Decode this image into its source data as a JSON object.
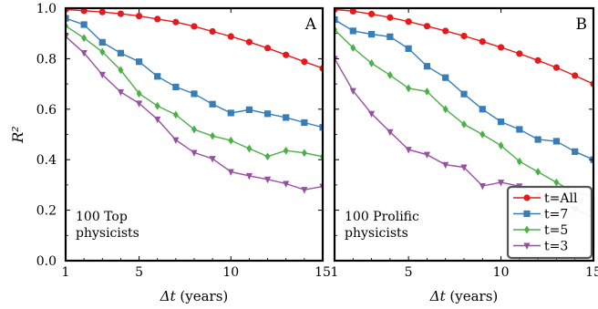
{
  "colors": {
    "t_all": "#e41a1c",
    "t_7": "#377eb8",
    "t_5": "#4daf4a",
    "t_3": "#984ea3"
  },
  "chart_data": [
    {
      "type": "line",
      "panel_label": "A",
      "annotation": [
        "100 Top",
        "physicists"
      ],
      "xlabel": "Δt (years)",
      "ylabel": "R²",
      "xlim": [
        1,
        15
      ],
      "ylim": [
        0.0,
        1.0
      ],
      "xticks": [
        1,
        5,
        10,
        15
      ],
      "yticks": [
        0.0,
        0.2,
        0.4,
        0.6,
        0.8,
        1.0
      ],
      "grid": false,
      "x": [
        1,
        2,
        3,
        4,
        5,
        6,
        7,
        8,
        9,
        10,
        11,
        12,
        13,
        14,
        15
      ],
      "series": [
        {
          "name": "t=All",
          "marker": "circle",
          "color": "#e41a1c",
          "values": [
            0.995,
            0.99,
            0.985,
            0.978,
            0.969,
            0.957,
            0.945,
            0.928,
            0.908,
            0.888,
            0.866,
            0.842,
            0.815,
            0.788,
            0.762
          ]
        },
        {
          "name": "t=7",
          "marker": "square",
          "color": "#377eb8",
          "values": [
            0.96,
            0.935,
            0.865,
            0.822,
            0.788,
            0.73,
            0.688,
            0.661,
            0.62,
            0.585,
            0.598,
            0.582,
            0.567,
            0.547,
            0.528
          ]
        },
        {
          "name": "t=5",
          "marker": "diamond",
          "color": "#4daf4a",
          "values": [
            0.93,
            0.882,
            0.827,
            0.755,
            0.662,
            0.613,
            0.578,
            0.52,
            0.494,
            0.476,
            0.444,
            0.413,
            0.436,
            0.427,
            0.412
          ]
        },
        {
          "name": "t=3",
          "marker": "triangle-down",
          "color": "#984ea3",
          "values": [
            0.888,
            0.823,
            0.737,
            0.668,
            0.623,
            0.56,
            0.478,
            0.428,
            0.404,
            0.352,
            0.336,
            0.322,
            0.305,
            0.281,
            0.294
          ]
        }
      ]
    },
    {
      "type": "line",
      "panel_label": "B",
      "annotation": [
        "100 Prolific",
        "physicists"
      ],
      "xlabel": "Δt (years)",
      "ylabel": "",
      "xlim": [
        1,
        15
      ],
      "ylim": [
        0.0,
        1.0
      ],
      "xticks": [
        1,
        5,
        10,
        15
      ],
      "yticks": [],
      "grid": false,
      "legend_position": "bottom-right",
      "x": [
        1,
        2,
        3,
        4,
        5,
        6,
        7,
        8,
        9,
        10,
        11,
        12,
        13,
        14,
        15
      ],
      "series": [
        {
          "name": "t=All",
          "marker": "circle",
          "color": "#e41a1c",
          "values": [
            0.995,
            0.988,
            0.977,
            0.963,
            0.947,
            0.929,
            0.91,
            0.89,
            0.868,
            0.845,
            0.82,
            0.793,
            0.765,
            0.733,
            0.7
          ]
        },
        {
          "name": "t=7",
          "marker": "square",
          "color": "#377eb8",
          "values": [
            0.955,
            0.91,
            0.897,
            0.887,
            0.84,
            0.77,
            0.725,
            0.66,
            0.6,
            0.55,
            0.52,
            0.48,
            0.473,
            0.432,
            0.4
          ]
        },
        {
          "name": "t=5",
          "marker": "diamond",
          "color": "#4daf4a",
          "values": [
            0.915,
            0.843,
            0.782,
            0.735,
            0.683,
            0.67,
            0.6,
            0.54,
            0.5,
            0.456,
            0.393,
            0.352,
            0.31,
            0.27,
            0.255
          ]
        },
        {
          "name": "t=3",
          "marker": "triangle-down",
          "color": "#984ea3",
          "values": [
            0.8,
            0.673,
            0.582,
            0.51,
            0.44,
            0.42,
            0.38,
            0.37,
            0.296,
            0.31,
            0.295,
            0.26,
            0.238,
            0.205,
            0.17
          ]
        }
      ]
    }
  ]
}
